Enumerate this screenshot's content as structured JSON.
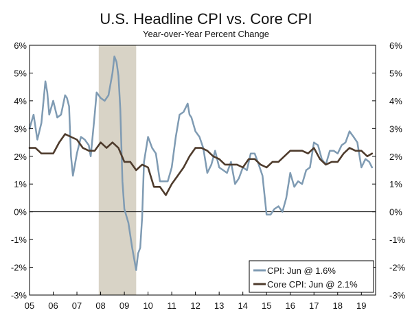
{
  "chart_data": {
    "type": "line",
    "title": "U.S. Headline CPI vs. Core CPI",
    "subtitle": "Year-over-Year Percent Change",
    "xlabel": "",
    "ylabel": "",
    "xlim": [
      2005.0,
      2019.6
    ],
    "ylim": [
      -3,
      6
    ],
    "x_ticks": [
      2005,
      2006,
      2007,
      2008,
      2009,
      2010,
      2011,
      2012,
      2013,
      2014,
      2015,
      2016,
      2017,
      2018,
      2019
    ],
    "x_tick_labels": [
      "05",
      "06",
      "07",
      "08",
      "09",
      "10",
      "11",
      "12",
      "13",
      "14",
      "15",
      "16",
      "17",
      "18",
      "19"
    ],
    "y_ticks": [
      -3,
      -2,
      -1,
      0,
      1,
      2,
      3,
      4,
      5,
      6
    ],
    "y_tick_labels": [
      "-3%",
      "-2%",
      "-1%",
      "0%",
      "1%",
      "2%",
      "3%",
      "4%",
      "5%",
      "6%"
    ],
    "grid": false,
    "zero_line": true,
    "legend_position": "bottom-right",
    "recession_band": {
      "start": 2007.92,
      "end": 2009.5,
      "color": "#d8d3c6"
    },
    "series": [
      {
        "name": "CPI: Jun @ 1.6%",
        "color": "#7f9bb3",
        "x": [
          2005.0,
          2005.17,
          2005.33,
          2005.5,
          2005.67,
          2005.75,
          2005.83,
          2006.0,
          2006.17,
          2006.33,
          2006.5,
          2006.58,
          2006.67,
          2006.75,
          2006.83,
          2007.0,
          2007.17,
          2007.33,
          2007.5,
          2007.58,
          2007.67,
          2007.75,
          2007.83,
          2008.0,
          2008.17,
          2008.33,
          2008.5,
          2008.58,
          2008.67,
          2008.75,
          2008.83,
          2008.92,
          2009.0,
          2009.17,
          2009.33,
          2009.5,
          2009.58,
          2009.67,
          2009.75,
          2009.83,
          2010.0,
          2010.17,
          2010.33,
          2010.5,
          2010.67,
          2010.83,
          2011.0,
          2011.17,
          2011.33,
          2011.5,
          2011.67,
          2011.75,
          2011.83,
          2012.0,
          2012.17,
          2012.33,
          2012.5,
          2012.67,
          2012.83,
          2013.0,
          2013.17,
          2013.33,
          2013.5,
          2013.67,
          2013.83,
          2014.0,
          2014.17,
          2014.33,
          2014.5,
          2014.67,
          2014.83,
          2015.0,
          2015.17,
          2015.33,
          2015.5,
          2015.67,
          2015.83,
          2016.0,
          2016.17,
          2016.33,
          2016.5,
          2016.67,
          2016.83,
          2017.0,
          2017.17,
          2017.33,
          2017.5,
          2017.67,
          2017.83,
          2018.0,
          2018.17,
          2018.33,
          2018.5,
          2018.67,
          2018.83,
          2019.0,
          2019.17,
          2019.33,
          2019.45
        ],
        "values": [
          3.0,
          3.5,
          2.6,
          3.2,
          4.7,
          4.3,
          3.5,
          4.0,
          3.4,
          3.5,
          4.2,
          4.1,
          3.8,
          2.0,
          1.3,
          2.1,
          2.7,
          2.6,
          2.4,
          2.0,
          2.8,
          3.5,
          4.3,
          4.1,
          4.0,
          4.2,
          5.0,
          5.6,
          5.4,
          4.9,
          3.7,
          1.1,
          0.1,
          -0.4,
          -1.3,
          -2.1,
          -1.5,
          -1.3,
          -0.2,
          1.8,
          2.7,
          2.3,
          2.1,
          1.1,
          1.1,
          1.1,
          1.6,
          2.7,
          3.5,
          3.6,
          3.9,
          3.5,
          3.4,
          2.9,
          2.7,
          2.3,
          1.4,
          1.7,
          2.2,
          1.6,
          1.5,
          1.4,
          1.8,
          1.0,
          1.2,
          1.6,
          1.5,
          2.1,
          2.1,
          1.7,
          1.3,
          -0.1,
          -0.1,
          0.1,
          0.2,
          0.0,
          0.5,
          1.4,
          0.9,
          1.1,
          1.0,
          1.5,
          1.6,
          2.5,
          2.4,
          1.9,
          1.7,
          2.2,
          2.2,
          2.1,
          2.4,
          2.5,
          2.9,
          2.7,
          2.5,
          1.6,
          1.9,
          1.8,
          1.6
        ]
      },
      {
        "name": "Core CPI: Jun @ 2.1%",
        "color": "#4e3b2c",
        "x": [
          2005.0,
          2005.25,
          2005.5,
          2005.75,
          2006.0,
          2006.25,
          2006.5,
          2006.75,
          2007.0,
          2007.25,
          2007.5,
          2007.75,
          2008.0,
          2008.25,
          2008.5,
          2008.75,
          2009.0,
          2009.25,
          2009.5,
          2009.75,
          2010.0,
          2010.25,
          2010.5,
          2010.75,
          2011.0,
          2011.25,
          2011.5,
          2011.75,
          2012.0,
          2012.25,
          2012.5,
          2012.75,
          2013.0,
          2013.25,
          2013.5,
          2013.75,
          2014.0,
          2014.25,
          2014.5,
          2014.75,
          2015.0,
          2015.25,
          2015.5,
          2015.75,
          2016.0,
          2016.25,
          2016.5,
          2016.75,
          2017.0,
          2017.25,
          2017.5,
          2017.75,
          2018.0,
          2018.25,
          2018.5,
          2018.75,
          2019.0,
          2019.25,
          2019.45
        ],
        "values": [
          2.3,
          2.3,
          2.1,
          2.1,
          2.1,
          2.5,
          2.8,
          2.7,
          2.6,
          2.3,
          2.2,
          2.2,
          2.5,
          2.3,
          2.5,
          2.3,
          1.8,
          1.8,
          1.5,
          1.7,
          1.6,
          0.9,
          0.9,
          0.6,
          1.0,
          1.3,
          1.6,
          2.0,
          2.3,
          2.3,
          2.2,
          2.0,
          1.9,
          1.7,
          1.7,
          1.7,
          1.6,
          1.9,
          1.9,
          1.7,
          1.6,
          1.8,
          1.8,
          2.0,
          2.2,
          2.2,
          2.2,
          2.1,
          2.3,
          1.9,
          1.7,
          1.8,
          1.8,
          2.1,
          2.3,
          2.2,
          2.2,
          2.0,
          2.1
        ]
      }
    ]
  }
}
